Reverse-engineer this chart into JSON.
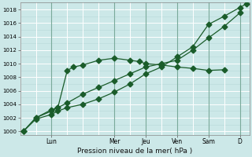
{
  "background_color": "#cce8e8",
  "grid_color": "#b0d8d8",
  "line_color": "#1a5c2a",
  "xlabel": "Pression niveau de la mer( hPa )",
  "ylim": [
    999.5,
    1019.0
  ],
  "yticks": [
    1000,
    1002,
    1004,
    1006,
    1008,
    1010,
    1012,
    1014,
    1016,
    1018
  ],
  "day_labels": [
    "Lun",
    "Mer",
    "Jeu",
    "Ven",
    "Sam",
    "D"
  ],
  "day_positions": [
    1.0,
    3.0,
    4.0,
    5.0,
    6.0,
    7.0
  ],
  "xmin": 0.0,
  "xmax": 7.3,
  "series1_x": [
    0.1,
    0.5,
    1.0,
    1.2,
    1.5,
    1.7,
    2.0,
    2.5,
    3.0,
    3.5,
    3.8,
    4.0,
    4.5,
    5.0,
    5.5,
    6.0,
    6.5
  ],
  "series1_y": [
    1000.0,
    1002.0,
    1003.2,
    1003.5,
    1009.0,
    1009.5,
    1009.8,
    1010.5,
    1010.8,
    1010.5,
    1010.3,
    1010.0,
    1009.8,
    1009.5,
    1009.3,
    1009.0,
    1009.1
  ],
  "series2_x": [
    0.1,
    0.5,
    1.0,
    1.2,
    1.5,
    2.0,
    2.5,
    3.0,
    3.5,
    4.0,
    4.5,
    5.0,
    5.5,
    6.0,
    6.5,
    7.0
  ],
  "series2_y": [
    1000.0,
    1002.0,
    1003.0,
    1003.5,
    1004.2,
    1005.5,
    1006.5,
    1007.5,
    1008.5,
    1009.5,
    1010.0,
    1010.5,
    1012.0,
    1013.8,
    1015.5,
    1017.5
  ],
  "series3_x": [
    0.1,
    0.5,
    1.0,
    1.2,
    1.5,
    2.0,
    2.5,
    3.0,
    3.5,
    4.0,
    4.5,
    5.0,
    5.5,
    6.0,
    6.5,
    7.0,
    7.2
  ],
  "series3_y": [
    1000.0,
    1001.8,
    1002.5,
    1003.0,
    1003.5,
    1004.0,
    1004.8,
    1005.8,
    1007.0,
    1008.5,
    1009.5,
    1011.0,
    1012.5,
    1015.8,
    1017.0,
    1018.3,
    1018.8
  ]
}
